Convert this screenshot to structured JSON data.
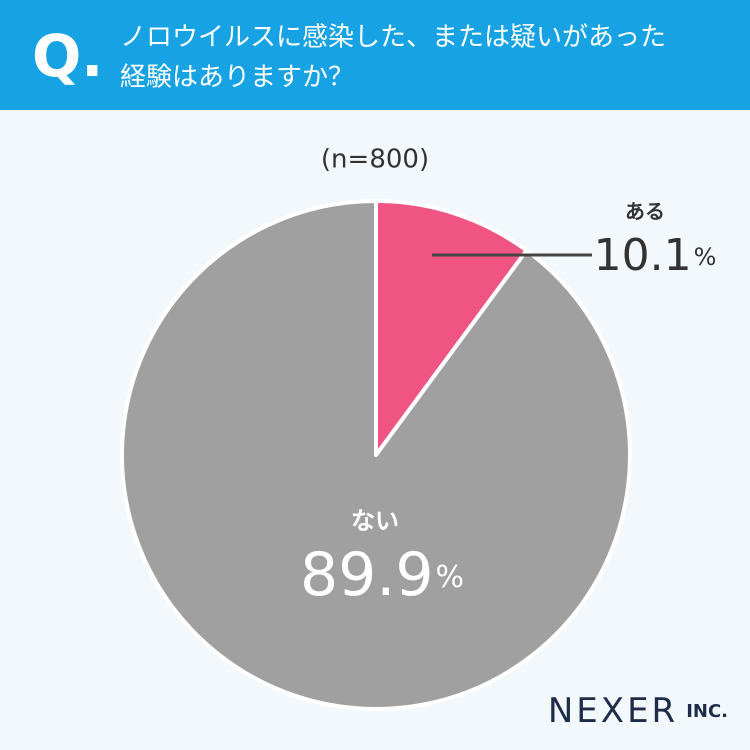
{
  "chart_data": {
    "type": "pie",
    "prefix": "Q.",
    "title": [
      "ノロウイルスに感染した、または疑いがあった",
      "経験はありますか？"
    ],
    "subtitle": "(n=800)",
    "categories": [
      "ある",
      "ない"
    ],
    "values": [
      10.1,
      89.9
    ],
    "unit": "%",
    "colors": [
      "#ef5483",
      "#a0a0a0"
    ],
    "brand": "NEXER",
    "brand_suffix": "INC."
  }
}
